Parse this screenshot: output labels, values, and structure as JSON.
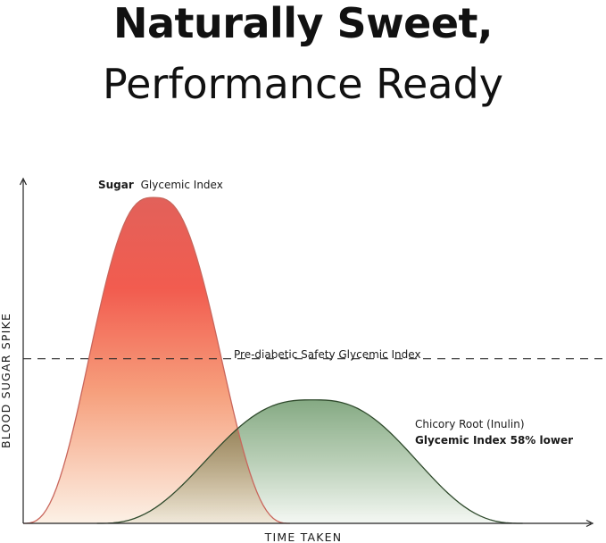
{
  "headline": {
    "line1": "Naturally Sweet,",
    "line2": "Performance Ready"
  },
  "chart_data": {
    "type": "area",
    "xlabel": "TIME TAKEN",
    "ylabel": "BLOOD SUGAR SPIKE",
    "threshold": {
      "label": "Pre-diabetic Safety Glycemic Index",
      "value": 0.48,
      "style": "dashed"
    },
    "series": [
      {
        "name": "Sugar Glycemic Index",
        "label_bold": "Sugar",
        "label_regular": "Glycemic Index",
        "peak_time": 0.23,
        "peak_value": 0.95,
        "start_time": 0.0,
        "end_time": 0.47,
        "color_top": "#e85a50",
        "color_bottom": "#fcefe3",
        "stroke": "#c9665c"
      },
      {
        "name": "Chicory Root (Inulin)",
        "label_regular": "Chicory Root (Inulin)",
        "label_bold": "Glycemic Index 58% lower",
        "peak_time": 0.51,
        "peak_value": 0.36,
        "start_time": 0.13,
        "end_time": 0.88,
        "color_top": "#6f9b6d",
        "color_bottom": "#f2f6f1",
        "stroke": "#2f4a2c"
      }
    ],
    "xlim": [
      0,
      1
    ],
    "ylim": [
      0,
      1
    ],
    "grid": false
  }
}
